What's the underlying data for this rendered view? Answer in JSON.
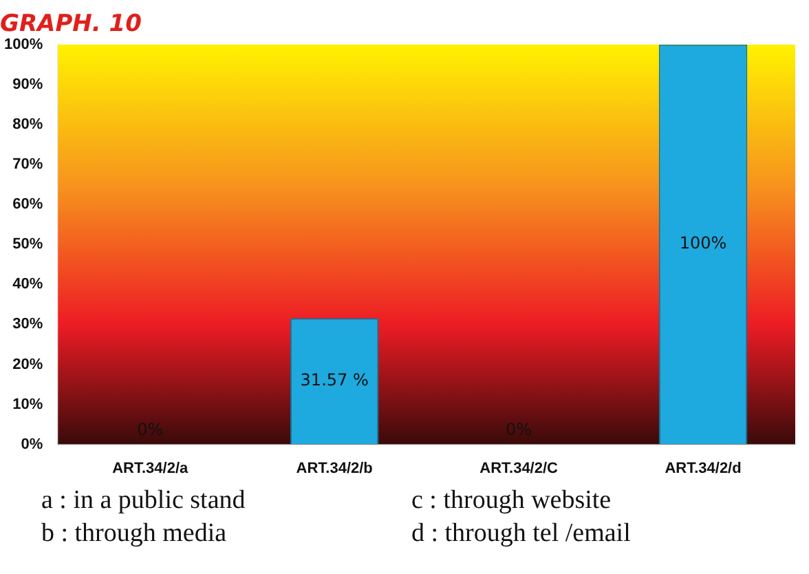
{
  "chart_data": {
    "type": "bar",
    "title": "GRAPH. 10",
    "categories": [
      "ART.34/2/a",
      "ART.34/2/b",
      "ART.34/2/C",
      "ART.34/2/d"
    ],
    "values": [
      0,
      31.57,
      0,
      100
    ],
    "color": "#1eaadf",
    "value_labels": [
      "0%",
      "31.57 %",
      "0%",
      "100%"
    ],
    "ylim": [
      0,
      100
    ],
    "yticks": [
      {
        "value": 0,
        "label": "0%"
      },
      {
        "value": 10,
        "label": "10%"
      },
      {
        "value": 20,
        "label": "20%"
      },
      {
        "value": 30,
        "label": "30%"
      },
      {
        "value": 40,
        "label": "40%"
      },
      {
        "value": 50,
        "label": "50%"
      },
      {
        "value": 60,
        "label": "60%"
      },
      {
        "value": 70,
        "label": "70%"
      },
      {
        "value": 80,
        "label": "80%"
      },
      {
        "value": 90,
        "label": "90%"
      },
      {
        "value": 100,
        "label": "100%"
      }
    ],
    "grid": false,
    "legend": false,
    "annotations": [
      "a : in a public stand",
      "c : through website",
      "b : through media",
      "d : through tel /email"
    ]
  }
}
